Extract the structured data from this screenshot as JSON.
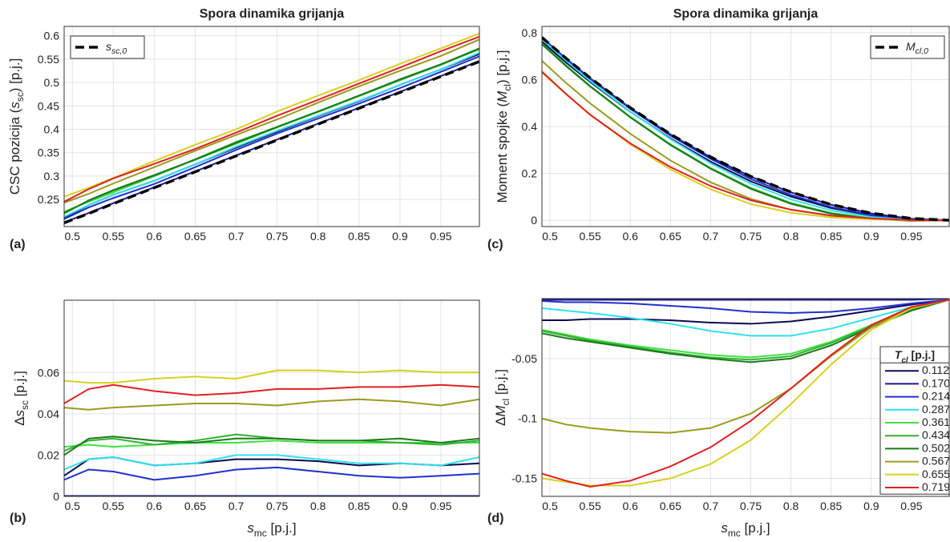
{
  "chart_data": [
    {
      "type": "line",
      "panel_label": "(a)",
      "title": "Spora dinamika grijanja",
      "ylabel": [
        {
          "t": "CSC pozicija ("
        },
        {
          "t": "s",
          "i": true
        },
        {
          "t": "sc",
          "sub": true
        },
        {
          "t": ") [p.j.]"
        }
      ],
      "x": [
        0.49,
        0.52,
        0.55,
        0.6,
        0.65,
        0.7,
        0.75,
        0.8,
        0.85,
        0.9,
        0.95,
        0.997
      ],
      "xlim": [
        0.49,
        0.997
      ],
      "xticks": [
        0.5,
        0.55,
        0.6,
        0.65,
        0.7,
        0.75,
        0.8,
        0.85,
        0.9,
        0.95
      ],
      "ylim": [
        0.192,
        0.62
      ],
      "yticks": [
        0.25,
        0.3,
        0.35,
        0.4,
        0.45,
        0.5,
        0.55,
        0.6
      ],
      "grid": true,
      "legend": "upper left",
      "series": [
        {
          "color": "#0a0a50",
          "values": [
            0.21,
            0.238,
            0.26,
            0.29,
            0.325,
            0.361,
            0.395,
            0.428,
            0.46,
            0.495,
            0.528,
            0.561
          ]
        },
        {
          "color": "#1a1a8c",
          "values": [
            0.201,
            0.221,
            0.242,
            0.276,
            0.31,
            0.344,
            0.378,
            0.412,
            0.446,
            0.48,
            0.514,
            0.546
          ]
        },
        {
          "color": "#2030d0",
          "values": [
            0.208,
            0.233,
            0.253,
            0.283,
            0.319,
            0.356,
            0.391,
            0.423,
            0.455,
            0.488,
            0.523,
            0.556
          ]
        },
        {
          "color": "#30e0f0",
          "values": [
            0.213,
            0.238,
            0.26,
            0.29,
            0.325,
            0.363,
            0.397,
            0.429,
            0.461,
            0.495,
            0.528,
            0.564
          ]
        },
        {
          "color": "#40e040",
          "values": [
            0.224,
            0.245,
            0.265,
            0.3,
            0.335,
            0.369,
            0.404,
            0.437,
            0.471,
            0.505,
            0.539,
            0.571
          ]
        },
        {
          "color": "#30b030",
          "values": [
            0.222,
            0.247,
            0.269,
            0.3,
            0.336,
            0.373,
            0.405,
            0.438,
            0.472,
            0.505,
            0.538,
            0.572
          ]
        },
        {
          "color": "#1a7a1a",
          "values": [
            0.22,
            0.248,
            0.27,
            0.302,
            0.335,
            0.371,
            0.405,
            0.438,
            0.472,
            0.507,
            0.539,
            0.573
          ]
        },
        {
          "color": "#9a9a20",
          "values": [
            0.243,
            0.262,
            0.284,
            0.319,
            0.354,
            0.388,
            0.421,
            0.457,
            0.492,
            0.525,
            0.557,
            0.592
          ]
        },
        {
          "color": "#d8d020",
          "values": [
            0.256,
            0.275,
            0.296,
            0.332,
            0.367,
            0.4,
            0.438,
            0.472,
            0.505,
            0.54,
            0.573,
            0.605
          ]
        },
        {
          "color": "#e02020",
          "values": [
            0.245,
            0.272,
            0.295,
            0.326,
            0.358,
            0.393,
            0.429,
            0.463,
            0.498,
            0.532,
            0.567,
            0.598
          ]
        },
        {
          "name": [
            {
              "t": "s",
              "i": true
            },
            {
              "t": "sc,0",
              "sub": true,
              "i": true
            }
          ],
          "color": "#000000",
          "dash": true,
          "values": [
            0.2,
            0.22,
            0.241,
            0.275,
            0.309,
            0.343,
            0.377,
            0.411,
            0.445,
            0.479,
            0.513,
            0.545
          ]
        }
      ]
    },
    {
      "type": "line",
      "panel_label": "(b)",
      "ylabel": [
        {
          "t": "Δ"
        },
        {
          "t": "s",
          "i": true
        },
        {
          "t": "sc",
          "sub": true
        },
        {
          "t": " [p.j.]"
        }
      ],
      "xlabel": [
        {
          "t": "s",
          "i": true
        },
        {
          "t": "mc",
          "sub": true
        },
        {
          "t": " [p.j.]"
        }
      ],
      "x": [
        0.49,
        0.52,
        0.55,
        0.6,
        0.65,
        0.7,
        0.75,
        0.8,
        0.85,
        0.9,
        0.95,
        0.997
      ],
      "xlim": [
        0.49,
        0.997
      ],
      "xticks": [
        0.5,
        0.55,
        0.6,
        0.65,
        0.7,
        0.75,
        0.8,
        0.85,
        0.9,
        0.95
      ],
      "ylim": [
        0,
        0.095
      ],
      "yticks": [
        0,
        0.02,
        0.04,
        0.06
      ],
      "grid": true,
      "series": [
        {
          "color": "#0a0a50",
          "values": [
            0.01,
            0.018,
            0.019,
            0.015,
            0.016,
            0.018,
            0.018,
            0.017,
            0.015,
            0.016,
            0.015,
            0.016
          ]
        },
        {
          "color": "#1a1a8c",
          "values": [
            0.0002,
            0.0002,
            0.0002,
            0.0002,
            0.0002,
            0.0002,
            0.0002,
            0.0002,
            0.0002,
            0.0002,
            0.0002,
            0.0002
          ]
        },
        {
          "color": "#2030d0",
          "values": [
            0.008,
            0.013,
            0.012,
            0.008,
            0.01,
            0.013,
            0.014,
            0.012,
            0.01,
            0.009,
            0.01,
            0.011
          ]
        },
        {
          "color": "#30e0f0",
          "values": [
            0.013,
            0.018,
            0.019,
            0.015,
            0.016,
            0.02,
            0.02,
            0.018,
            0.016,
            0.016,
            0.015,
            0.019
          ]
        },
        {
          "color": "#40e040",
          "values": [
            0.024,
            0.025,
            0.024,
            0.025,
            0.026,
            0.026,
            0.027,
            0.026,
            0.026,
            0.026,
            0.026,
            0.026
          ]
        },
        {
          "color": "#30b030",
          "values": [
            0.022,
            0.027,
            0.028,
            0.025,
            0.027,
            0.03,
            0.028,
            0.027,
            0.027,
            0.026,
            0.025,
            0.027
          ]
        },
        {
          "color": "#1a7a1a",
          "values": [
            0.02,
            0.028,
            0.029,
            0.027,
            0.026,
            0.028,
            0.028,
            0.027,
            0.027,
            0.028,
            0.026,
            0.028
          ]
        },
        {
          "color": "#9a9a20",
          "values": [
            0.043,
            0.042,
            0.043,
            0.044,
            0.045,
            0.045,
            0.044,
            0.046,
            0.047,
            0.046,
            0.044,
            0.047
          ]
        },
        {
          "color": "#d8d020",
          "values": [
            0.056,
            0.055,
            0.055,
            0.057,
            0.058,
            0.057,
            0.061,
            0.061,
            0.06,
            0.061,
            0.06,
            0.06
          ]
        },
        {
          "color": "#e02020",
          "values": [
            0.045,
            0.052,
            0.054,
            0.051,
            0.049,
            0.05,
            0.052,
            0.052,
            0.053,
            0.053,
            0.054,
            0.053
          ]
        }
      ]
    },
    {
      "type": "line",
      "panel_label": "(c)",
      "title": "Spora dinamika grijanja",
      "ylabel": [
        {
          "t": "Moment spojke ("
        },
        {
          "t": "M",
          "i": true
        },
        {
          "t": "cl",
          "sub": true
        },
        {
          "t": ") [p.j.]"
        }
      ],
      "x": [
        0.49,
        0.52,
        0.55,
        0.6,
        0.65,
        0.7,
        0.75,
        0.8,
        0.85,
        0.9,
        0.95,
        0.997
      ],
      "xlim": [
        0.49,
        0.997
      ],
      "xticks": [
        0.5,
        0.55,
        0.6,
        0.65,
        0.7,
        0.75,
        0.8,
        0.85,
        0.9,
        0.95
      ],
      "ylim": [
        -0.027,
        0.827
      ],
      "yticks": [
        0,
        0.2,
        0.4,
        0.6,
        0.8
      ],
      "grid": true,
      "legend": "upper right",
      "series": [
        {
          "color": "#0a0a50",
          "values": [
            0.762,
            0.673,
            0.59,
            0.463,
            0.349,
            0.25,
            0.166,
            0.101,
            0.052,
            0.02,
            0.0025,
            -0.001
          ]
        },
        {
          "color": "#1a1a8c",
          "values": [
            0.779,
            0.69,
            0.606,
            0.479,
            0.366,
            0.269,
            0.186,
            0.119,
            0.066,
            0.029,
            0.0065,
            0
          ]
        },
        {
          "color": "#2030d0",
          "values": [
            0.778,
            0.688,
            0.604,
            0.476,
            0.361,
            0.262,
            0.176,
            0.108,
            0.056,
            0.022,
            0.0035,
            -0.001
          ]
        },
        {
          "color": "#30e0f0",
          "values": [
            0.772,
            0.681,
            0.595,
            0.464,
            0.346,
            0.243,
            0.156,
            0.089,
            0.042,
            0.014,
            0.0005,
            -0.001
          ]
        },
        {
          "color": "#40e040",
          "values": [
            0.754,
            0.661,
            0.573,
            0.441,
            0.324,
            0.223,
            0.138,
            0.074,
            0.031,
            0.008,
            -0.0015,
            -0.001
          ]
        },
        {
          "color": "#30b030",
          "values": [
            0.753,
            0.66,
            0.572,
            0.44,
            0.322,
            0.221,
            0.136,
            0.072,
            0.03,
            0.007,
            -0.0015,
            -0.001
          ]
        },
        {
          "color": "#1a7a1a",
          "values": [
            0.751,
            0.658,
            0.571,
            0.439,
            0.321,
            0.22,
            0.134,
            0.07,
            0.028,
            0.006,
            -0.0025,
            -0.001
          ]
        },
        {
          "color": "#9a9a20",
          "values": [
            0.68,
            0.586,
            0.499,
            0.369,
            0.255,
            0.162,
            0.091,
            0.045,
            0.019,
            0.006,
            -0.0005,
            -0.001
          ]
        },
        {
          "color": "#d8d020",
          "values": [
            0.63,
            0.538,
            0.451,
            0.324,
            0.217,
            0.132,
            0.069,
            0.032,
            0.012,
            0.004,
            -0.0005,
            -0.001
          ]
        },
        {
          "color": "#e02020",
          "values": [
            0.634,
            0.539,
            0.45,
            0.328,
            0.227,
            0.146,
            0.085,
            0.045,
            0.02,
            0.008,
            0.0005,
            -0.001
          ]
        },
        {
          "name": [
            {
              "t": "M",
              "i": true
            },
            {
              "t": "cl,0",
              "sub": true,
              "i": true
            }
          ],
          "color": "#000000",
          "dash": true,
          "values": [
            0.78,
            0.691,
            0.607,
            0.48,
            0.367,
            0.27,
            0.187,
            0.12,
            0.067,
            0.03,
            0.0075,
            0.0
          ]
        }
      ]
    },
    {
      "type": "line",
      "panel_label": "(d)",
      "ylabel": [
        {
          "t": "Δ"
        },
        {
          "t": "M",
          "i": true
        },
        {
          "t": "cl",
          "sub": true
        },
        {
          "t": " [p.j.]"
        }
      ],
      "xlabel": [
        {
          "t": "s",
          "i": true
        },
        {
          "t": "mc",
          "sub": true
        },
        {
          "t": " [p.j.]"
        }
      ],
      "x": [
        0.49,
        0.52,
        0.55,
        0.6,
        0.65,
        0.7,
        0.75,
        0.8,
        0.85,
        0.9,
        0.95,
        0.997
      ],
      "xlim": [
        0.49,
        0.997
      ],
      "xticks": [
        0.5,
        0.55,
        0.6,
        0.65,
        0.7,
        0.75,
        0.8,
        0.85,
        0.9,
        0.95
      ],
      "ylim": [
        -0.165,
        0
      ],
      "yticks": [
        -0.15,
        -0.1,
        -0.05
      ],
      "grid": true,
      "legend": "right",
      "legend_title": [
        {
          "t": "T",
          "i": true
        },
        {
          "t": "cl",
          "sub": true,
          "i": true
        },
        {
          "t": " [p.j.]"
        }
      ],
      "series": [
        {
          "name": "0.112",
          "color": "#0a0a50",
          "values": [
            -0.018,
            -0.018,
            -0.017,
            -0.017,
            -0.018,
            -0.02,
            -0.021,
            -0.019,
            -0.015,
            -0.01,
            -0.005,
            -0.001
          ]
        },
        {
          "name": "0.170",
          "color": "#1a1a8c",
          "values": [
            -0.001,
            -0.001,
            -0.001,
            -0.001,
            -0.001,
            -0.001,
            -0.001,
            -0.001,
            -0.001,
            -0.001,
            -0.001,
            0
          ]
        },
        {
          "name": "0.214",
          "color": "#2030d0",
          "values": [
            -0.002,
            -0.003,
            -0.003,
            -0.004,
            -0.006,
            -0.008,
            -0.011,
            -0.012,
            -0.011,
            -0.008,
            -0.004,
            -0.001
          ]
        },
        {
          "name": "0.287",
          "color": "#30e0f0",
          "values": [
            -0.008,
            -0.01,
            -0.012,
            -0.016,
            -0.021,
            -0.027,
            -0.031,
            -0.031,
            -0.025,
            -0.016,
            -0.007,
            -0.001
          ]
        },
        {
          "name": "0.361",
          "color": "#40e040",
          "values": [
            -0.026,
            -0.03,
            -0.034,
            -0.039,
            -0.043,
            -0.047,
            -0.049,
            -0.046,
            -0.036,
            -0.022,
            -0.009,
            -0.001
          ]
        },
        {
          "name": "0.434",
          "color": "#30b030",
          "values": [
            -0.027,
            -0.031,
            -0.035,
            -0.04,
            -0.045,
            -0.049,
            -0.051,
            -0.048,
            -0.037,
            -0.023,
            -0.009,
            -0.001
          ]
        },
        {
          "name": "0.502",
          "color": "#1a7a1a",
          "values": [
            -0.029,
            -0.033,
            -0.036,
            -0.041,
            -0.046,
            -0.05,
            -0.053,
            -0.05,
            -0.039,
            -0.024,
            -0.01,
            -0.001
          ]
        },
        {
          "name": "0.567",
          "color": "#9a9a20",
          "values": [
            -0.1,
            -0.105,
            -0.108,
            -0.111,
            -0.112,
            -0.108,
            -0.096,
            -0.075,
            -0.048,
            -0.024,
            -0.008,
            -0.001
          ]
        },
        {
          "name": "0.655",
          "color": "#d8d020",
          "values": [
            -0.15,
            -0.153,
            -0.156,
            -0.156,
            -0.15,
            -0.138,
            -0.118,
            -0.088,
            -0.055,
            -0.026,
            -0.008,
            -0.001
          ]
        },
        {
          "name": "0.719",
          "color": "#e02020",
          "values": [
            -0.146,
            -0.152,
            -0.157,
            -0.152,
            -0.14,
            -0.124,
            -0.102,
            -0.075,
            -0.047,
            -0.022,
            -0.007,
            -0.001
          ]
        }
      ]
    }
  ]
}
